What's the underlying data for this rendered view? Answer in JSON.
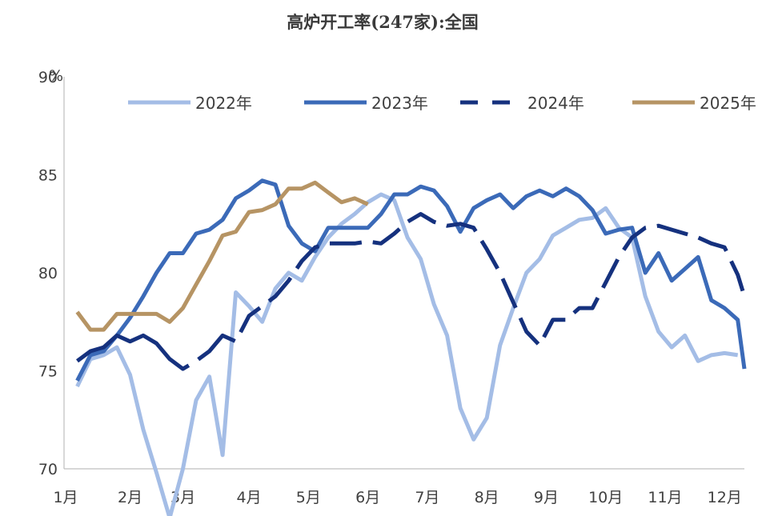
{
  "chart_data": {
    "type": "line",
    "title": "高炉开工率(247家):全国",
    "ylabel": "%",
    "ylim": [
      70,
      90
    ],
    "yticks": [
      70,
      75,
      80,
      85,
      90
    ],
    "ytick_labels": [
      "70",
      "75",
      "80",
      "85",
      "90"
    ],
    "xlim": [
      0,
      51.5
    ],
    "xticks": [
      {
        "label": "1月",
        "week": 0
      },
      {
        "label": "2月",
        "week": 5
      },
      {
        "label": "3月",
        "week": 9
      },
      {
        "label": "4月",
        "week": 14
      },
      {
        "label": "5月",
        "week": 18.5
      },
      {
        "label": "6月",
        "week": 23
      },
      {
        "label": "7月",
        "week": 27.5
      },
      {
        "label": "8月",
        "week": 32
      },
      {
        "label": "9月",
        "week": 36.5
      },
      {
        "label": "10月",
        "week": 41
      },
      {
        "label": "11月",
        "week": 45.5
      },
      {
        "label": "12月",
        "week": 50
      }
    ],
    "grid": false,
    "legend": {
      "position": "top"
    },
    "series": [
      {
        "name": "2022年",
        "color": "#a4bde6",
        "dash": "solid",
        "points": [
          [
            1,
            74.2
          ],
          [
            2,
            75.6
          ],
          [
            3,
            75.8
          ],
          [
            4,
            76.2
          ],
          [
            5,
            74.8
          ],
          [
            6,
            72
          ],
          [
            7,
            69.8
          ],
          [
            8,
            67.5
          ],
          [
            9,
            70
          ],
          [
            10,
            73.5
          ],
          [
            11,
            74.7
          ],
          [
            12,
            70.7
          ],
          [
            13,
            79
          ],
          [
            14,
            78.3
          ],
          [
            15,
            77.5
          ],
          [
            16,
            79.2
          ],
          [
            17,
            80
          ],
          [
            18,
            79.6
          ],
          [
            19,
            80.8
          ],
          [
            20,
            81.8
          ],
          [
            21,
            82.5
          ],
          [
            22,
            83
          ],
          [
            23,
            83.6
          ],
          [
            24,
            84
          ],
          [
            25,
            83.7
          ],
          [
            26,
            81.8
          ],
          [
            27,
            80.7
          ],
          [
            28,
            78.4
          ],
          [
            29,
            76.8
          ],
          [
            30,
            73.1
          ],
          [
            31,
            71.5
          ],
          [
            32,
            72.6
          ],
          [
            33,
            76.3
          ],
          [
            34,
            78.2
          ],
          [
            35,
            80
          ],
          [
            36,
            80.7
          ],
          [
            37,
            81.9
          ],
          [
            38,
            82.3
          ],
          [
            39,
            82.7
          ],
          [
            40,
            82.8
          ],
          [
            41,
            83.3
          ],
          [
            42,
            82.3
          ],
          [
            43,
            81.8
          ],
          [
            44,
            78.8
          ],
          [
            45,
            77
          ],
          [
            46,
            76.2
          ],
          [
            47,
            76.8
          ],
          [
            48,
            75.5
          ],
          [
            49,
            75.8
          ],
          [
            50,
            75.9
          ],
          [
            51,
            75.8
          ]
        ]
      },
      {
        "name": "2023年",
        "color": "#3b6ab8",
        "dash": "solid",
        "points": [
          [
            1,
            74.5
          ],
          [
            2,
            75.8
          ],
          [
            3,
            76
          ],
          [
            4,
            76.8
          ],
          [
            5,
            77.7
          ],
          [
            6,
            78.8
          ],
          [
            7,
            80
          ],
          [
            8,
            81
          ],
          [
            9,
            81
          ],
          [
            10,
            82
          ],
          [
            11,
            82.2
          ],
          [
            12,
            82.7
          ],
          [
            13,
            83.8
          ],
          [
            14,
            84.2
          ],
          [
            15,
            84.7
          ],
          [
            16,
            84.5
          ],
          [
            17,
            82.4
          ],
          [
            18,
            81.5
          ],
          [
            19,
            81.1
          ],
          [
            20,
            82.3
          ],
          [
            21,
            82.3
          ],
          [
            22,
            82.3
          ],
          [
            23,
            82.3
          ],
          [
            24,
            83
          ],
          [
            25,
            84
          ],
          [
            26,
            84
          ],
          [
            27,
            84.4
          ],
          [
            28,
            84.2
          ],
          [
            29,
            83.4
          ],
          [
            30,
            82.1
          ],
          [
            31,
            83.3
          ],
          [
            32,
            83.7
          ],
          [
            33,
            84
          ],
          [
            34,
            83.3
          ],
          [
            35,
            83.9
          ],
          [
            36,
            84.2
          ],
          [
            37,
            83.9
          ],
          [
            38,
            84.3
          ],
          [
            39,
            83.9
          ],
          [
            40,
            83.2
          ],
          [
            41,
            82
          ],
          [
            42,
            82.2
          ],
          [
            43,
            82.3
          ],
          [
            44,
            80
          ],
          [
            45,
            81
          ],
          [
            46,
            79.6
          ],
          [
            47,
            80.2
          ],
          [
            48,
            80.8
          ],
          [
            49,
            78.6
          ],
          [
            50,
            78.2
          ],
          [
            51,
            77.6
          ],
          [
            51.5,
            75.1
          ]
        ]
      },
      {
        "name": "2024年",
        "color": "#15317e",
        "dash": "dash-mixed",
        "points": [
          [
            1,
            75.5
          ],
          [
            2,
            76
          ],
          [
            3,
            76.2
          ],
          [
            4,
            76.8
          ],
          [
            5,
            76.5
          ],
          [
            6,
            76.8
          ],
          [
            7,
            76.4
          ],
          [
            8,
            75.6
          ],
          [
            9,
            75.1
          ],
          [
            10,
            75.5
          ],
          [
            11,
            76
          ],
          [
            12,
            76.8
          ],
          [
            13,
            76.5
          ],
          [
            14,
            77.8
          ],
          [
            15,
            78.3
          ],
          [
            16,
            78.8
          ],
          [
            17,
            79.6
          ],
          [
            18,
            80.6
          ],
          [
            19,
            81.3
          ],
          [
            20,
            81.5
          ],
          [
            21,
            81.5
          ],
          [
            22,
            81.5
          ],
          [
            23,
            81.6
          ],
          [
            24,
            81.5
          ],
          [
            25,
            82
          ],
          [
            26,
            82.6
          ],
          [
            27,
            83
          ],
          [
            28,
            82.6
          ],
          [
            29,
            82.4
          ],
          [
            30,
            82.5
          ],
          [
            31,
            82.3
          ],
          [
            32,
            81.2
          ],
          [
            33,
            80
          ],
          [
            34,
            78.5
          ],
          [
            35,
            77
          ],
          [
            36,
            76.3
          ],
          [
            37,
            77.6
          ],
          [
            38,
            77.6
          ],
          [
            39,
            78.2
          ],
          [
            40,
            78.2
          ],
          [
            41,
            79.5
          ],
          [
            42,
            80.8
          ],
          [
            43,
            81.8
          ],
          [
            44,
            82.3
          ],
          [
            45,
            82.4
          ],
          [
            46,
            82.2
          ],
          [
            47,
            82
          ],
          [
            48,
            81.8
          ],
          [
            49,
            81.5
          ],
          [
            50,
            81.3
          ],
          [
            51,
            79.9
          ],
          [
            51.5,
            78.8
          ]
        ]
      },
      {
        "name": "2025年",
        "color": "#b69464",
        "dash": "solid",
        "points": [
          [
            1,
            78
          ],
          [
            2,
            77.1
          ],
          [
            3,
            77.1
          ],
          [
            4,
            77.9
          ],
          [
            5,
            77.9
          ],
          [
            6,
            77.9
          ],
          [
            7,
            77.9
          ],
          [
            8,
            77.5
          ],
          [
            9,
            78.2
          ],
          [
            10,
            79.4
          ],
          [
            11,
            80.6
          ],
          [
            12,
            81.9
          ],
          [
            13,
            82.1
          ],
          [
            14,
            83.1
          ],
          [
            15,
            83.2
          ],
          [
            16,
            83.5
          ],
          [
            17,
            84.3
          ],
          [
            18,
            84.3
          ],
          [
            19,
            84.6
          ],
          [
            20,
            84.1
          ],
          [
            21,
            83.6
          ],
          [
            22,
            83.8
          ],
          [
            23,
            83.5
          ]
        ]
      }
    ]
  }
}
